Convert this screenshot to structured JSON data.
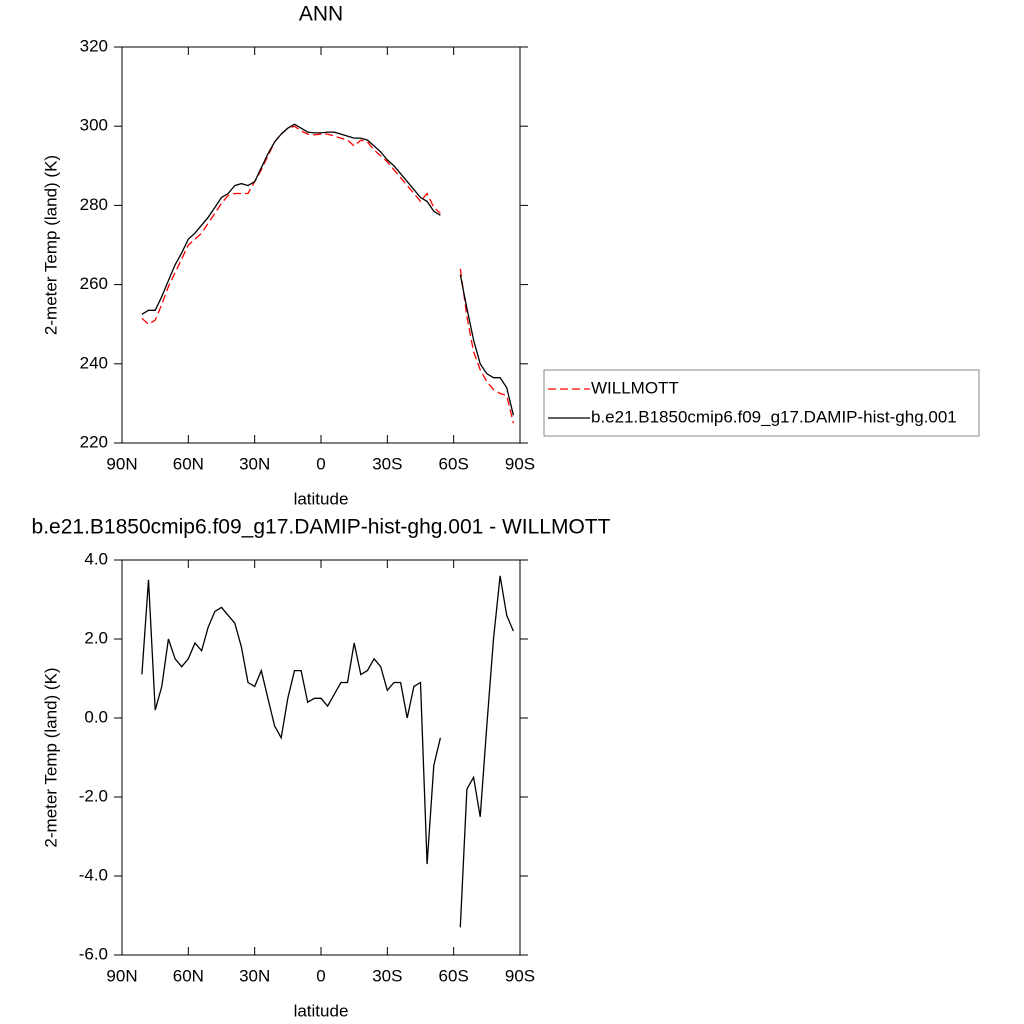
{
  "chart_data": [
    {
      "type": "line",
      "title": "ANN",
      "x_label": "latitude",
      "y_label": "2-meter Temp (land) (K)",
      "x": [
        81,
        78,
        75,
        72,
        69,
        66,
        63,
        60,
        57,
        54,
        51,
        48,
        45,
        42,
        39,
        36,
        33,
        30,
        27,
        24,
        21,
        18,
        15,
        12,
        9,
        6,
        3,
        0,
        -3,
        -6,
        -9,
        -12,
        -15,
        -18,
        -21,
        -24,
        -27,
        -30,
        -33,
        -36,
        -39,
        -42,
        -45,
        -48,
        -51,
        -54,
        -57,
        -60,
        -63,
        -66,
        -69,
        -72,
        -75,
        -78,
        -81,
        -84,
        -87
      ],
      "series": [
        {
          "name": "WILLMOTT",
          "color": "#ff0000",
          "dashed": true,
          "values": [
            251.5,
            250,
            251,
            255,
            259.5,
            263,
            266.5,
            270,
            271.5,
            273,
            275.5,
            278,
            280.5,
            282.5,
            283,
            283,
            283,
            286,
            289,
            292.5,
            296,
            298,
            299.5,
            300,
            298.8,
            298,
            297.8,
            298,
            298,
            297.5,
            297,
            296.5,
            295,
            296.5,
            296,
            294,
            292.5,
            291,
            289,
            287,
            285,
            283,
            281,
            283,
            279.5,
            278,
            null,
            null,
            264,
            252,
            243,
            238.5,
            235.5,
            233.5,
            232.5,
            232,
            225
          ]
        },
        {
          "name": "b.e21.B1850cmip6.f09_g17.DAMIP-hist-ghg.001",
          "color": "#000000",
          "dashed": false,
          "values": [
            252.5,
            253.5,
            253.5,
            257,
            261,
            265,
            268,
            271.5,
            273,
            275,
            277,
            279.5,
            282,
            283,
            285,
            285.5,
            285,
            286,
            289.5,
            293,
            296,
            298,
            299.5,
            300.5,
            299.5,
            298.5,
            298.3,
            298.3,
            298.5,
            298.5,
            298,
            297.5,
            297,
            297,
            296.5,
            295,
            293.5,
            291.5,
            290,
            288,
            286,
            284,
            282,
            281,
            278.5,
            277.5,
            null,
            null,
            262.5,
            254,
            246,
            240,
            237.5,
            236.5,
            236.5,
            234,
            227
          ]
        }
      ],
      "xlim": [
        90,
        -90
      ],
      "xticks": [
        {
          "value": 90,
          "label": "90N"
        },
        {
          "value": 60,
          "label": "60N"
        },
        {
          "value": 30,
          "label": "30N"
        },
        0,
        {
          "value": -30,
          "label": "30S"
        },
        {
          "value": -60,
          "label": "60S"
        },
        {
          "value": -90,
          "label": "90S"
        }
      ],
      "ylim": [
        220,
        320
      ],
      "yticks": [
        220,
        240,
        260,
        280,
        300,
        320
      ],
      "legend": "right"
    },
    {
      "type": "line",
      "title": "b.e21.B1850cmip6.f09_g17.DAMIP-hist-ghg.001 - WILLMOTT",
      "x_label": "latitude",
      "y_label": "2-meter Temp (land) (K)",
      "x": [
        81,
        78,
        75,
        72,
        69,
        66,
        63,
        60,
        57,
        54,
        51,
        48,
        45,
        42,
        39,
        36,
        33,
        30,
        27,
        24,
        21,
        18,
        15,
        12,
        9,
        6,
        3,
        0,
        -3,
        -6,
        -9,
        -12,
        -15,
        -18,
        -21,
        -24,
        -27,
        -30,
        -33,
        -36,
        -39,
        -42,
        -45,
        -48,
        -51,
        -54,
        -57,
        -60,
        -63,
        -66,
        -69,
        -72,
        -75,
        -78,
        -81,
        -84,
        -87
      ],
      "series": [
        {
          "color": "#000000",
          "dashed": false,
          "values": [
            1.1,
            3.5,
            0.2,
            0.8,
            2.0,
            1.5,
            1.3,
            1.5,
            1.9,
            1.7,
            2.3,
            2.7,
            2.8,
            2.6,
            2.4,
            1.8,
            0.9,
            0.8,
            1.2,
            0.5,
            -0.2,
            -0.5,
            0.5,
            1.2,
            1.2,
            0.4,
            0.5,
            0.5,
            0.3,
            0.6,
            0.9,
            0.9,
            1.9,
            1.1,
            1.2,
            1.5,
            1.3,
            0.7,
            0.9,
            0.9,
            0.0,
            0.8,
            0.9,
            -3.7,
            -1.2,
            -0.5,
            null,
            null,
            -5.3,
            -1.8,
            -1.5,
            -2.5,
            -0.2,
            2.0,
            3.6,
            2.6,
            2.2
          ]
        }
      ],
      "xlim": [
        90,
        -90
      ],
      "xticks": [
        {
          "value": 90,
          "label": "90N"
        },
        {
          "value": 60,
          "label": "60N"
        },
        {
          "value": 30,
          "label": "30N"
        },
        0,
        {
          "value": -30,
          "label": "30S"
        },
        {
          "value": -60,
          "label": "60S"
        },
        {
          "value": -90,
          "label": "90S"
        }
      ],
      "ylim": [
        -6,
        4
      ],
      "yticks": [
        {
          "value": -6,
          "label": "-6.0"
        },
        {
          "value": -4,
          "label": "-4.0"
        },
        {
          "value": -2,
          "label": "-2.0"
        },
        {
          "value": 0,
          "label": "0.0"
        },
        {
          "value": 2,
          "label": "2.0"
        },
        {
          "value": 4,
          "label": "4.0"
        }
      ]
    }
  ]
}
